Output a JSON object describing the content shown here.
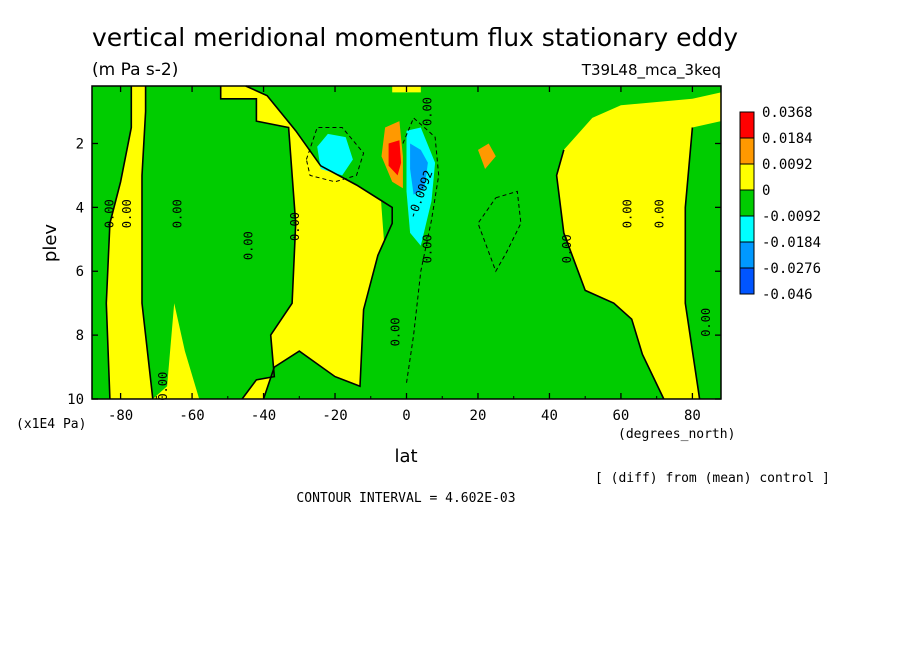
{
  "chart_data": {
    "type": "heatmap",
    "title": "vertical meridional momentum flux stationary eddy",
    "units": "(m Pa s-2)",
    "run": "T39L48_mca_3keq",
    "xlabel": "lat",
    "x_units": "(degrees_north)",
    "ylabel": "plev",
    "y_units": "(x1E4 Pa)",
    "xlim": [
      -88,
      88
    ],
    "ylim": [
      10,
      0.2
    ],
    "x_ticks": [
      "-80",
      "-60",
      "-40",
      "-20",
      "0",
      "20",
      "40",
      "60",
      "80"
    ],
    "x_tick_values": [
      -80,
      -60,
      -40,
      -20,
      0,
      20,
      40,
      60,
      80
    ],
    "y_ticks": [
      "2",
      "4",
      "6",
      "8",
      "10"
    ],
    "y_tick_values": [
      2,
      4,
      6,
      8,
      10
    ],
    "legend": {
      "labels": [
        "0.0368",
        "0.0184",
        "0.0092",
        "0",
        "-0.0092",
        "-0.0184",
        "-0.0276",
        "-0.046"
      ],
      "colors": [
        "#ff0000",
        "#ff9900",
        "#ffff00",
        "#00cc00",
        "#00ffff",
        "#0099ff",
        "#0055ff"
      ]
    },
    "contour_label": "0.00",
    "contour_label_min": "-0.0092",
    "note": "[ (diff) from (mean) control ]",
    "contour_interval_text": "CONTOUR INTERVAL = 4.602E-03",
    "regions": [
      {
        "name": "positive",
        "color": "#ffff00",
        "polygons": [
          [
            [
              -88,
              0.2
            ],
            [
              88,
              0.2
            ],
            [
              88,
              10
            ],
            [
              -88,
              10
            ]
          ]
        ]
      },
      {
        "name": "negative",
        "color": "#00cc00",
        "polygons": [
          [
            [
              -88,
              0.2
            ],
            [
              -77,
              0.2
            ],
            [
              -77,
              1.5
            ],
            [
              -80,
              3.2
            ],
            [
              -83,
              4.5
            ],
            [
              -84,
              7
            ],
            [
              -83,
              10
            ],
            [
              -88,
              10
            ]
          ],
          [
            [
              -73,
              0.2
            ],
            [
              -52,
              0.2
            ],
            [
              -52,
              0.6
            ],
            [
              -42,
              0.6
            ],
            [
              -42,
              1.3
            ],
            [
              -33,
              1.5
            ],
            [
              -31,
              4.5
            ],
            [
              -32,
              7
            ],
            [
              -38,
              8
            ],
            [
              -37,
              9.3
            ],
            [
              -42,
              9.4
            ],
            [
              -46,
              10
            ],
            [
              -58,
              10
            ],
            [
              -62,
              8.5
            ],
            [
              -65,
              7
            ],
            [
              -67,
              9.6
            ],
            [
              -71,
              10
            ],
            [
              -74,
              7
            ],
            [
              -74,
              3
            ],
            [
              -73,
              1
            ]
          ],
          [
            [
              -45,
              0.2
            ],
            [
              -4,
              0.2
            ],
            [
              -4,
              0.4
            ],
            [
              4,
              0.4
            ],
            [
              4,
              0.2
            ],
            [
              88,
              0.2
            ],
            [
              88,
              0.4
            ],
            [
              80,
              0.6
            ],
            [
              60,
              0.8
            ],
            [
              52,
              1.2
            ],
            [
              44,
              2.2
            ],
            [
              42,
              3
            ],
            [
              44,
              4.8
            ],
            [
              50,
              6.6
            ],
            [
              58,
              7
            ],
            [
              63,
              7.5
            ],
            [
              66,
              8.6
            ],
            [
              72,
              10
            ],
            [
              -40,
              10
            ],
            [
              -37,
              9
            ],
            [
              -30,
              8.5
            ],
            [
              -20,
              9.3
            ],
            [
              -13,
              9.6
            ],
            [
              -12,
              7.2
            ],
            [
              -8,
              5.5
            ],
            [
              -4,
              4.5
            ],
            [
              -4,
              4
            ],
            [
              -14,
              3.3
            ],
            [
              -24,
              2.7
            ],
            [
              -31,
              1.6
            ],
            [
              -39,
              0.5
            ]
          ],
          [
            [
              -8,
              2.2
            ],
            [
              -4,
              1.2
            ],
            [
              2,
              0.8
            ],
            [
              8,
              1.5
            ],
            [
              10,
              2.4
            ],
            [
              6,
              3.4
            ],
            [
              4,
              5
            ],
            [
              2,
              8
            ],
            [
              0,
              10
            ],
            [
              -5,
              10
            ],
            [
              -5,
              7
            ],
            [
              -7,
              4
            ]
          ],
          [
            [
              80,
              1.5
            ],
            [
              88,
              1.3
            ],
            [
              88,
              10
            ],
            [
              82,
              10
            ],
            [
              78,
              7
            ],
            [
              78,
              4
            ]
          ]
        ]
      },
      {
        "name": "orange",
        "color": "#ff9900",
        "polygons": [
          [
            [
              -6,
              1.5
            ],
            [
              -2,
              1.3
            ],
            [
              -1,
              2.4
            ],
            [
              -1,
              3.4
            ],
            [
              -4,
              3.2
            ],
            [
              -7,
              2.4
            ]
          ],
          [
            [
              20,
              2.2
            ],
            [
              23,
              2.0
            ],
            [
              25,
              2.4
            ],
            [
              22,
              2.8
            ]
          ]
        ]
      },
      {
        "name": "red",
        "color": "#ff0000",
        "polygons": [
          [
            [
              -5,
              2.0
            ],
            [
              -2,
              1.9
            ],
            [
              -1.5,
              2.6
            ],
            [
              -2.5,
              3.0
            ],
            [
              -5,
              2.7
            ]
          ]
        ]
      },
      {
        "name": "cyan",
        "color": "#00ffff",
        "polygons": [
          [
            [
              -25,
              2.1
            ],
            [
              -22,
              1.7
            ],
            [
              -17,
              1.8
            ],
            [
              -15,
              2.5
            ],
            [
              -18,
              3.0
            ],
            [
              -24,
              2.8
            ]
          ],
          [
            [
              0,
              1.6
            ],
            [
              4,
              1.5
            ],
            [
              8,
              2.6
            ],
            [
              7,
              3.8
            ],
            [
              4,
              5.2
            ],
            [
              1,
              4.8
            ],
            [
              0,
              3.5
            ]
          ]
        ]
      },
      {
        "name": "blue",
        "color": "#0099ff",
        "polygons": [
          [
            [
              1,
              2.0
            ],
            [
              4,
              2.2
            ],
            [
              6,
              2.6
            ],
            [
              5,
              3.4
            ],
            [
              2,
              3.6
            ],
            [
              1,
              2.8
            ]
          ]
        ]
      }
    ],
    "contour_lines": [
      [
        [
          -77,
          0.2
        ],
        [
          -77,
          1.5
        ],
        [
          -80,
          3.2
        ],
        [
          -83,
          4.5
        ],
        [
          -84,
          7
        ],
        [
          -83,
          10
        ]
      ],
      [
        [
          -73,
          0.2
        ],
        [
          -73,
          1
        ],
        [
          -74,
          3
        ],
        [
          -74,
          7
        ],
        [
          -71,
          10
        ]
      ],
      [
        [
          -52,
          0.2
        ],
        [
          -52,
          0.6
        ],
        [
          -42,
          0.6
        ],
        [
          -42,
          1.3
        ],
        [
          -33,
          1.5
        ],
        [
          -31,
          4.5
        ],
        [
          -32,
          7
        ],
        [
          -38,
          8
        ],
        [
          -37,
          9.3
        ],
        [
          -42,
          9.4
        ],
        [
          -46,
          10
        ]
      ],
      [
        [
          -45,
          0.2
        ],
        [
          -39,
          0.5
        ],
        [
          -31,
          1.6
        ],
        [
          -24,
          2.7
        ],
        [
          -14,
          3.3
        ],
        [
          -4,
          4
        ],
        [
          -4,
          4.5
        ],
        [
          -8,
          5.5
        ],
        [
          -12,
          7.2
        ],
        [
          -13,
          9.6
        ],
        [
          -20,
          9.3
        ],
        [
          -30,
          8.5
        ],
        [
          -37,
          9
        ],
        [
          -40,
          10
        ]
      ],
      [
        [
          44,
          2.2
        ],
        [
          42,
          3
        ],
        [
          44,
          4.8
        ],
        [
          50,
          6.6
        ],
        [
          58,
          7
        ],
        [
          63,
          7.5
        ],
        [
          66,
          8.6
        ],
        [
          72,
          10
        ]
      ],
      [
        [
          80,
          1.5
        ],
        [
          78,
          4
        ],
        [
          78,
          7
        ],
        [
          82,
          10
        ]
      ]
    ],
    "dashed_lines": [
      [
        [
          -28,
          2.5
        ],
        [
          -25,
          1.5
        ],
        [
          -18,
          1.5
        ],
        [
          -12,
          2.3
        ],
        [
          -14,
          3
        ],
        [
          -20,
          3.2
        ],
        [
          -27,
          3.0
        ],
        [
          -28,
          2.5
        ]
      ],
      [
        [
          25,
          3.7
        ],
        [
          31,
          3.5
        ],
        [
          32,
          4.5
        ],
        [
          28,
          5.4
        ],
        [
          25,
          6.0
        ],
        [
          20,
          4.5
        ],
        [
          25,
          3.7
        ]
      ],
      [
        [
          -1,
          2.0
        ],
        [
          2,
          1.2
        ],
        [
          8,
          1.8
        ],
        [
          9,
          3.0
        ],
        [
          7,
          4.4
        ],
        [
          4,
          6.0
        ],
        [
          2,
          8.0
        ],
        [
          0,
          9.5
        ]
      ]
    ],
    "value_labels": [
      {
        "x": -83,
        "y": 4.2,
        "text": "0.00"
      },
      {
        "x": -78,
        "y": 4.2,
        "text": "0.00"
      },
      {
        "x": -64,
        "y": 4.2,
        "text": "0.00"
      },
      {
        "x": -44,
        "y": 5.2,
        "text": "0.00"
      },
      {
        "x": -31,
        "y": 4.6,
        "text": "0.00"
      },
      {
        "x": -68,
        "y": 9.6,
        "text": "0.00"
      },
      {
        "x": -3,
        "y": 7.9,
        "text": "0.00"
      },
      {
        "x": 6,
        "y": 1.0,
        "text": "0.00"
      },
      {
        "x": 6,
        "y": 5.3,
        "text": "0.00"
      },
      {
        "x": 45,
        "y": 5.3,
        "text": "0.00"
      },
      {
        "x": 62,
        "y": 4.2,
        "text": "0.00"
      },
      {
        "x": 71,
        "y": 4.2,
        "text": "0.00"
      },
      {
        "x": 84,
        "y": 7.6,
        "text": "0.00"
      }
    ]
  }
}
